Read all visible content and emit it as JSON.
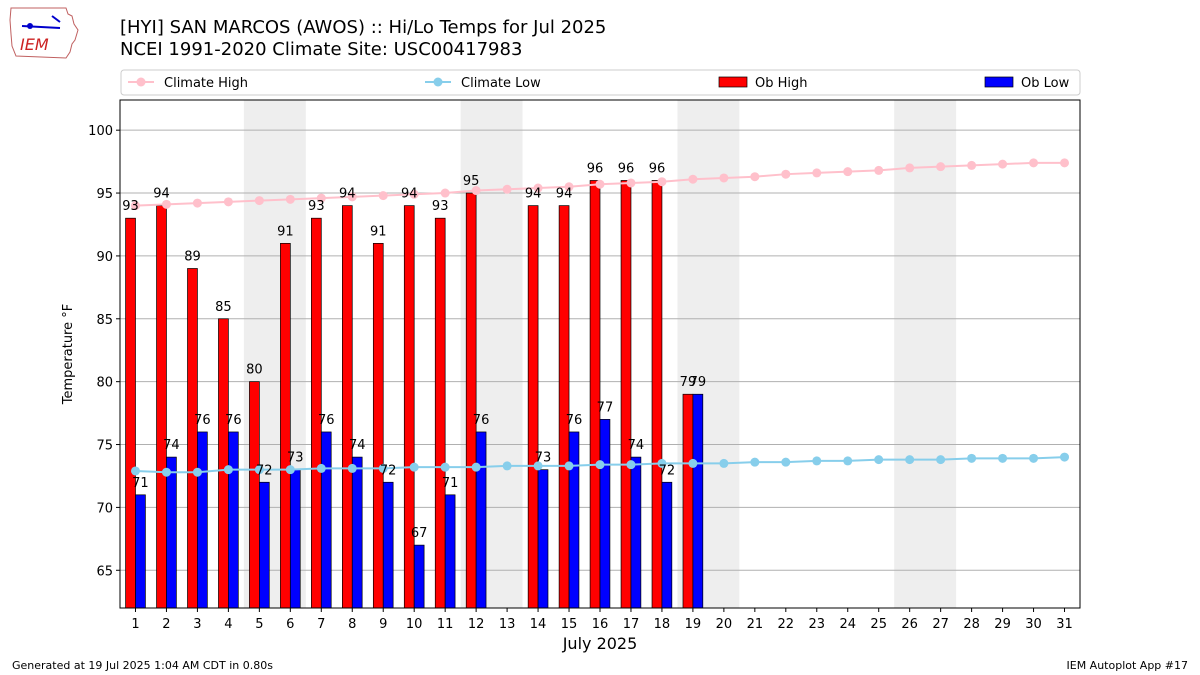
{
  "header": {
    "title_line1": "[HYI] SAN MARCOS (AWOS) :: Hi/Lo Temps for Jul 2025",
    "title_line2": "NCEI 1991-2020 Climate Site: USC00417983",
    "logo_text": "IEM"
  },
  "footer": {
    "left": "Generated at 19 Jul 2025 1:04 AM CDT in 0.80s",
    "right": "IEM Autoplot App #17"
  },
  "colors": {
    "ob_high": "#ff0000",
    "ob_low": "#0000ff",
    "climate_high": "#ffc0cb",
    "climate_low": "#87ceeb",
    "weekend_shade": "#eeeeee",
    "grid": "#b0b0b0"
  },
  "chart_data": {
    "type": "bar",
    "xlabel": "July 2025",
    "ylabel": "Temperature °F",
    "ylim": [
      62,
      102.4
    ],
    "yticks": [
      65,
      70,
      75,
      80,
      85,
      90,
      95,
      100
    ],
    "grid": "horizontal",
    "legend_position": "top",
    "categories": [
      1,
      2,
      3,
      4,
      5,
      6,
      7,
      8,
      9,
      10,
      11,
      12,
      13,
      14,
      15,
      16,
      17,
      18,
      19,
      20,
      21,
      22,
      23,
      24,
      25,
      26,
      27,
      28,
      29,
      30,
      31
    ],
    "weekend_days": [
      [
        5,
        6
      ],
      [
        12,
        13
      ],
      [
        19,
        20
      ],
      [
        26,
        27
      ]
    ],
    "series": [
      {
        "name": "Climate High",
        "kind": "line",
        "values": [
          94.0,
          94.1,
          94.2,
          94.3,
          94.4,
          94.5,
          94.6,
          94.7,
          94.8,
          94.9,
          95.0,
          95.2,
          95.3,
          95.4,
          95.5,
          95.7,
          95.8,
          95.9,
          96.1,
          96.2,
          96.3,
          96.5,
          96.6,
          96.7,
          96.8,
          97.0,
          97.1,
          97.2,
          97.3,
          97.4,
          97.4
        ]
      },
      {
        "name": "Climate Low",
        "kind": "line",
        "values": [
          72.9,
          72.8,
          72.8,
          73.0,
          73.0,
          73.0,
          73.1,
          73.1,
          73.1,
          73.2,
          73.2,
          73.2,
          73.3,
          73.3,
          73.3,
          73.4,
          73.4,
          73.5,
          73.5,
          73.5,
          73.6,
          73.6,
          73.7,
          73.7,
          73.8,
          73.8,
          73.8,
          73.9,
          73.9,
          73.9,
          74.0
        ]
      },
      {
        "name": "Ob High",
        "kind": "bar",
        "values": [
          93,
          94,
          89,
          85,
          80,
          91,
          93,
          94,
          91,
          94,
          93,
          95,
          null,
          94,
          94,
          96,
          96,
          96,
          79,
          null,
          null,
          null,
          null,
          null,
          null,
          null,
          null,
          null,
          null,
          null,
          null
        ],
        "labels": [
          "93",
          "94",
          "89",
          "85",
          "80",
          "91",
          "93",
          "94",
          "91",
          "94",
          "93",
          "95",
          "",
          "94",
          "94",
          "96",
          "96",
          "96",
          "79",
          "",
          "",
          "",
          "",
          "",
          "",
          "",
          "",
          "",
          "",
          "",
          ""
        ]
      },
      {
        "name": "Ob Low",
        "kind": "bar",
        "values": [
          71,
          74,
          76,
          76,
          72,
          73,
          76,
          74,
          72,
          67,
          71,
          76,
          null,
          73,
          76,
          77,
          74,
          72,
          79,
          null,
          null,
          null,
          null,
          null,
          null,
          null,
          null,
          null,
          null,
          null,
          null
        ],
        "labels": [
          "71",
          "74",
          "76",
          "76",
          "72",
          "73",
          "76",
          "74",
          "72",
          "67",
          "71",
          "76",
          "",
          "73",
          "76",
          "77",
          "74",
          "72",
          "79",
          "",
          "",
          "",
          "",
          "",
          "",
          "",
          "",
          "",
          "",
          "",
          ""
        ]
      }
    ]
  }
}
